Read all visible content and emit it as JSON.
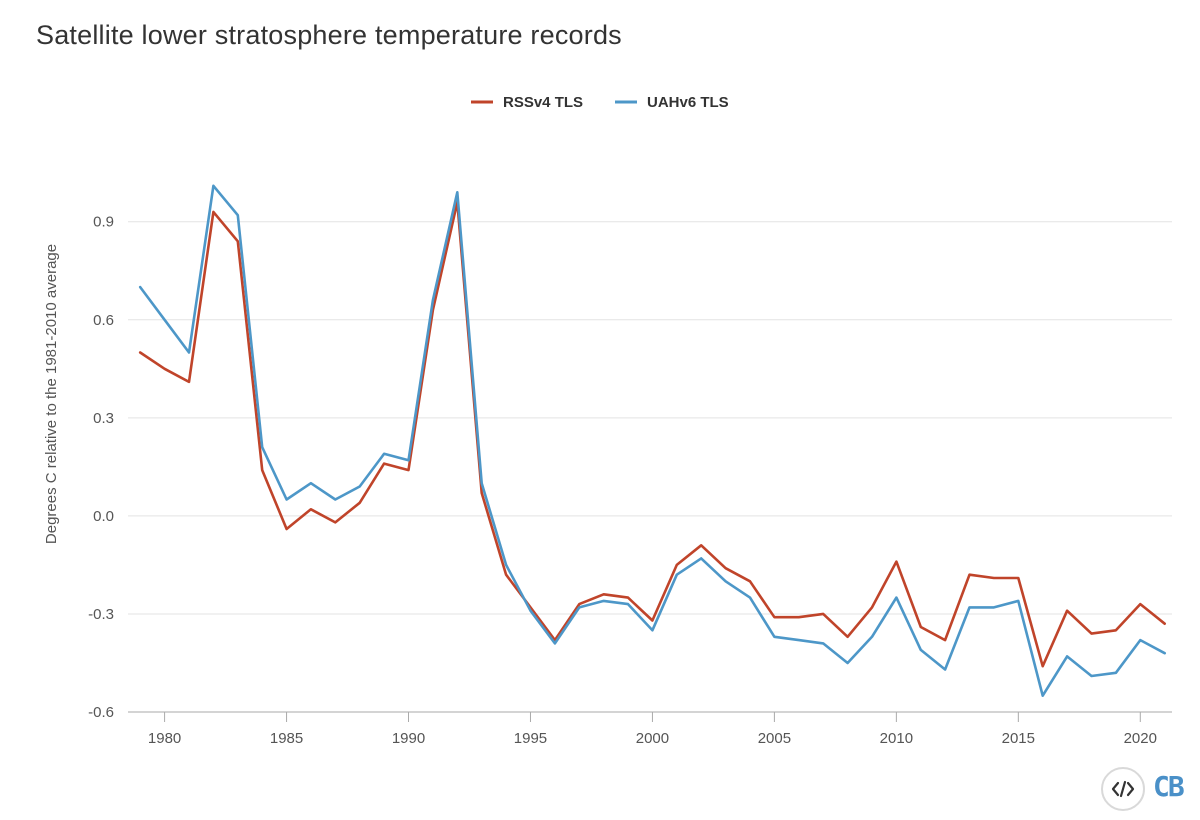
{
  "chart_data": {
    "type": "line",
    "title": "Satellite lower stratosphere temperature records",
    "ylabel": "Degrees C relative to the 1981-2010 average",
    "xlabel": "",
    "xlim": [
      1978.5,
      2021.3
    ],
    "ylim": [
      -0.6,
      1.15
    ],
    "x_ticks": [
      1980,
      1985,
      1990,
      1995,
      2000,
      2005,
      2010,
      2015,
      2020
    ],
    "y_ticks": [
      -0.6,
      -0.3,
      0.0,
      0.3,
      0.6,
      0.9
    ],
    "y_tick_labels": [
      "-0.6",
      "-0.3",
      "0.0",
      "0.3",
      "0.6",
      "0.9"
    ],
    "grid": "horizontal",
    "legend_position": "top-center",
    "x": [
      1979,
      1980,
      1981,
      1982,
      1983,
      1984,
      1985,
      1986,
      1987,
      1988,
      1989,
      1990,
      1991,
      1992,
      1993,
      1994,
      1995,
      1996,
      1997,
      1998,
      1999,
      2000,
      2001,
      2002,
      2003,
      2004,
      2005,
      2006,
      2007,
      2008,
      2009,
      2010,
      2011,
      2012,
      2013,
      2014,
      2015,
      2016,
      2017,
      2018,
      2019,
      2020,
      2021
    ],
    "series": [
      {
        "name": "RSSv4 TLS",
        "color": "#c0442a",
        "values": [
          0.5,
          0.45,
          0.41,
          0.93,
          0.84,
          0.14,
          -0.04,
          0.02,
          -0.02,
          0.04,
          0.16,
          0.14,
          0.63,
          0.96,
          0.07,
          -0.18,
          -0.28,
          -0.38,
          -0.27,
          -0.24,
          -0.25,
          -0.32,
          -0.15,
          -0.09,
          -0.16,
          -0.2,
          -0.31,
          -0.31,
          -0.3,
          -0.37,
          -0.28,
          -0.14,
          -0.34,
          -0.38,
          -0.18,
          -0.19,
          -0.19,
          -0.46,
          -0.29,
          -0.36,
          -0.35,
          -0.27,
          -0.33
        ]
      },
      {
        "name": "UAHv6 TLS",
        "color": "#4d97c8",
        "values": [
          0.7,
          0.6,
          0.5,
          1.01,
          0.92,
          0.21,
          0.05,
          0.1,
          0.05,
          0.09,
          0.19,
          0.17,
          0.66,
          0.99,
          0.1,
          -0.15,
          -0.29,
          -0.39,
          -0.28,
          -0.26,
          -0.27,
          -0.35,
          -0.18,
          -0.13,
          -0.2,
          -0.25,
          -0.37,
          -0.38,
          -0.39,
          -0.45,
          -0.37,
          -0.25,
          -0.41,
          -0.47,
          -0.28,
          -0.28,
          -0.26,
          -0.55,
          -0.43,
          -0.49,
          -0.48,
          -0.38,
          -0.42
        ]
      }
    ]
  },
  "logo": {
    "code_icon": "code-brackets-icon",
    "brand_text": "CB",
    "brand_color": "#4a90c8"
  }
}
